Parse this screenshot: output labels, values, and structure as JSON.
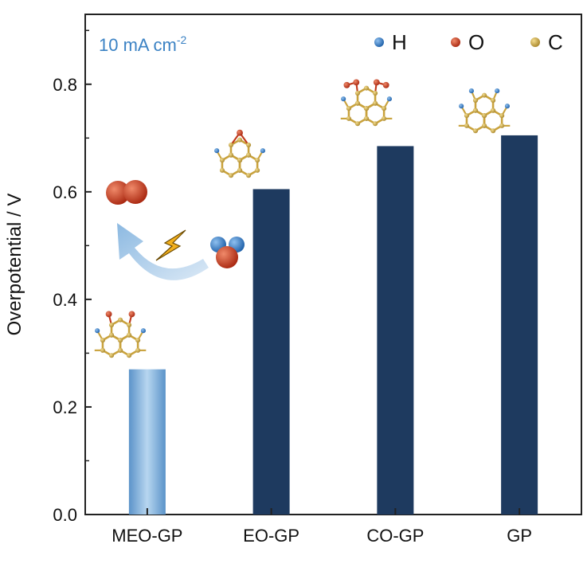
{
  "chart_data": {
    "type": "bar",
    "categories": [
      "MEO-GP",
      "EO-GP",
      "CO-GP",
      "GP"
    ],
    "values": [
      0.27,
      0.605,
      0.685,
      0.705
    ],
    "ylabel": "Overpotential / V",
    "ylim": [
      0,
      0.93
    ],
    "yticks": [
      "0.0",
      "0.2",
      "0.4",
      "0.6",
      "0.8"
    ],
    "annotation": {
      "text": "10 mA cm",
      "sup": "-2"
    },
    "legend": [
      {
        "label": "H",
        "color": "#2f6db0"
      },
      {
        "label": "O",
        "color": "#c0391b"
      },
      {
        "label": "C",
        "color": "#d6b24a"
      }
    ],
    "bar_colors": {
      "highlight": "#8bb9e0",
      "default": "#1e3a5f"
    },
    "grid": false,
    "legend_position": "top-right"
  }
}
